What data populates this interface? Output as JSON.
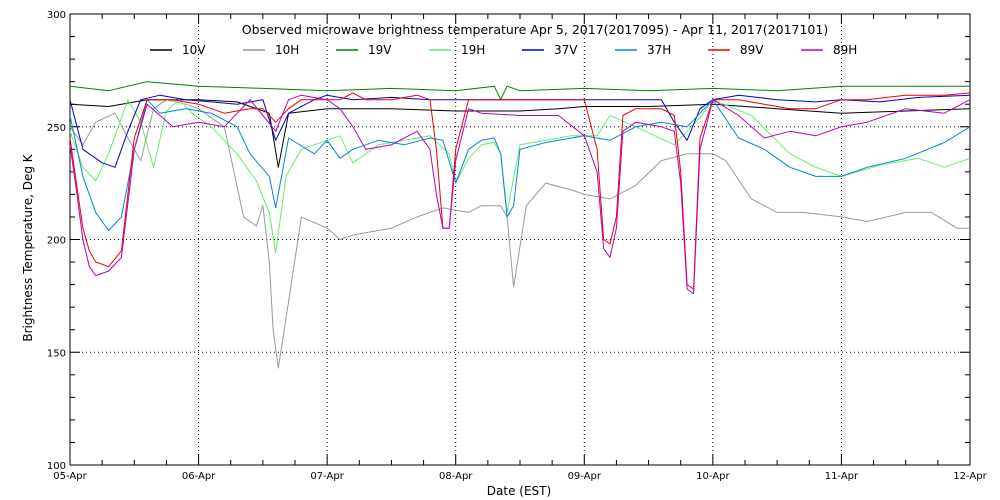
{
  "chart_data": {
    "type": "line",
    "title": "Observed microwave brightness temperature Apr  5, 2017(2017095) - Apr 11, 2017(2017101)",
    "xlabel": "Date (EST)",
    "ylabel": "Brightness Temperature, Deg K",
    "x_ticks": [
      "05-Apr",
      "06-Apr",
      "07-Apr",
      "08-Apr",
      "09-Apr",
      "10-Apr",
      "11-Apr",
      "12-Apr"
    ],
    "y_ticks": [
      "100",
      "150",
      "200",
      "250",
      "300"
    ],
    "xlim_days": [
      0,
      7
    ],
    "ylim": [
      100,
      300
    ],
    "grid": "dotted",
    "legend_position": "top",
    "series": [
      {
        "name": "10V",
        "color": "#000000",
        "x": [
          0,
          0.3,
          0.6,
          1.0,
          1.3,
          1.55,
          1.62,
          1.7,
          2.0,
          2.5,
          3.0,
          3.5,
          3.8,
          4.0,
          4.5,
          5.0,
          5.5,
          6.0,
          6.5,
          7.0
        ],
        "values": [
          260,
          259,
          262,
          262,
          261,
          256,
          232,
          256,
          258,
          258,
          257,
          257,
          258,
          259,
          259,
          260,
          258,
          256,
          257,
          258
        ]
      },
      {
        "name": "10H",
        "color": "#999999",
        "x": [
          0,
          0.1,
          0.2,
          0.35,
          0.45,
          0.55,
          0.65,
          0.75,
          0.9,
          1.0,
          1.2,
          1.35,
          1.45,
          1.5,
          1.55,
          1.58,
          1.62,
          1.68,
          1.8,
          2.0,
          2.1,
          2.2,
          2.5,
          2.7,
          2.9,
          3.1,
          3.2,
          3.35,
          3.4,
          3.45,
          3.55,
          3.7,
          3.9,
          4.0,
          4.2,
          4.4,
          4.6,
          4.8,
          5.0,
          5.1,
          5.3,
          5.5,
          5.7,
          6.0,
          6.2,
          6.5,
          6.7,
          6.9,
          7.0
        ],
        "values": [
          250,
          242,
          252,
          256,
          245,
          235,
          258,
          262,
          260,
          258,
          250,
          210,
          206,
          215,
          190,
          160,
          143,
          165,
          210,
          205,
          200,
          202,
          205,
          210,
          214,
          212,
          215,
          215,
          210,
          179,
          215,
          225,
          222,
          220,
          218,
          224,
          235,
          238,
          238,
          235,
          218,
          212,
          212,
          210,
          208,
          212,
          212,
          205,
          205
        ]
      },
      {
        "name": "19V",
        "color": "#008000",
        "x": [
          0,
          0.3,
          0.6,
          1.0,
          1.5,
          2.0,
          2.5,
          3.0,
          3.3,
          3.35,
          3.4,
          3.5,
          4.0,
          4.5,
          5.0,
          5.5,
          6.0,
          6.5,
          7.0
        ],
        "values": [
          268,
          266,
          270,
          268,
          267,
          266,
          267,
          266,
          268,
          262,
          268,
          266,
          267,
          266,
          267,
          266,
          268,
          268,
          268
        ]
      },
      {
        "name": "19H",
        "color": "#66ee66",
        "x": [
          0,
          0.1,
          0.2,
          0.3,
          0.45,
          0.55,
          0.65,
          0.75,
          0.85,
          0.95,
          1.1,
          1.3,
          1.45,
          1.55,
          1.6,
          1.68,
          1.8,
          2.0,
          2.1,
          2.2,
          2.4,
          2.6,
          2.8,
          2.95,
          3.0,
          3.1,
          3.2,
          3.3,
          3.35,
          3.4,
          3.5,
          3.7,
          3.9,
          4.1,
          4.2,
          4.4,
          4.7,
          4.9,
          5.0,
          5.3,
          5.6,
          5.8,
          6.0,
          6.3,
          6.6,
          6.8,
          7.0
        ],
        "values": [
          248,
          232,
          226,
          238,
          262,
          252,
          232,
          257,
          262,
          256,
          250,
          238,
          226,
          212,
          194,
          228,
          240,
          244,
          246,
          234,
          242,
          244,
          246,
          238,
          225,
          236,
          242,
          243,
          238,
          212,
          242,
          244,
          246,
          246,
          255,
          250,
          242,
          254,
          262,
          255,
          238,
          232,
          228,
          233,
          236,
          232,
          236
        ]
      },
      {
        "name": "37V",
        "color": "#0000cc",
        "x": [
          0,
          0.1,
          0.25,
          0.35,
          0.45,
          0.55,
          0.7,
          0.9,
          1.1,
          1.3,
          1.5,
          1.6,
          1.7,
          1.9,
          2.0,
          2.2,
          2.5,
          2.8,
          3.0,
          3.2,
          3.5,
          3.8,
          4.0,
          4.2,
          4.4,
          4.6,
          4.7,
          4.8,
          4.9,
          5.0,
          5.2,
          5.5,
          5.8,
          6.0,
          6.3,
          6.6,
          7.0
        ],
        "values": [
          262,
          240,
          234,
          232,
          248,
          262,
          264,
          262,
          261,
          260,
          262,
          244,
          256,
          262,
          264,
          262,
          263,
          262,
          262,
          262,
          262,
          262,
          262,
          262,
          262,
          262,
          252,
          244,
          258,
          262,
          264,
          262,
          261,
          262,
          261,
          263,
          264
        ]
      },
      {
        "name": "37H",
        "color": "#0088dd",
        "x": [
          0,
          0.1,
          0.2,
          0.3,
          0.4,
          0.5,
          0.6,
          0.7,
          0.9,
          1.1,
          1.3,
          1.4,
          1.55,
          1.6,
          1.7,
          1.9,
          2.0,
          2.1,
          2.2,
          2.4,
          2.6,
          2.8,
          2.9,
          3.0,
          3.1,
          3.2,
          3.3,
          3.35,
          3.4,
          3.45,
          3.5,
          3.7,
          3.9,
          4.0,
          4.2,
          4.4,
          4.6,
          4.8,
          5.0,
          5.2,
          5.4,
          5.6,
          5.8,
          6.0,
          6.2,
          6.5,
          6.8,
          7.0
        ],
        "values": [
          255,
          228,
          212,
          204,
          210,
          240,
          262,
          256,
          258,
          256,
          250,
          238,
          228,
          214,
          245,
          238,
          244,
          236,
          240,
          244,
          242,
          245,
          244,
          225,
          240,
          244,
          245,
          238,
          210,
          215,
          240,
          243,
          245,
          246,
          244,
          250,
          252,
          250,
          262,
          245,
          240,
          232,
          228,
          228,
          232,
          236,
          243,
          250
        ]
      },
      {
        "name": "89V",
        "color": "#ee0000",
        "x": [
          0,
          0.05,
          0.1,
          0.15,
          0.2,
          0.3,
          0.4,
          0.5,
          0.6,
          0.8,
          1.0,
          1.2,
          1.4,
          1.5,
          1.6,
          1.7,
          1.8,
          2.0,
          2.1,
          2.2,
          2.3,
          2.5,
          2.7,
          2.8,
          2.85,
          2.9,
          2.95,
          3.0,
          3.1,
          3.2,
          3.5,
          3.8,
          4.0,
          4.1,
          4.15,
          4.2,
          4.25,
          4.3,
          4.4,
          4.6,
          4.7,
          4.75,
          4.8,
          4.85,
          4.9,
          5.0,
          5.2,
          5.4,
          5.6,
          5.8,
          6.0,
          6.2,
          6.5,
          6.8,
          7.0
        ],
        "values": [
          245,
          225,
          205,
          195,
          190,
          188,
          195,
          245,
          262,
          262,
          260,
          256,
          258,
          258,
          252,
          258,
          262,
          262,
          262,
          265,
          262,
          262,
          264,
          262,
          240,
          205,
          205,
          240,
          262,
          262,
          262,
          262,
          262,
          240,
          200,
          198,
          210,
          255,
          258,
          258,
          255,
          230,
          180,
          178,
          245,
          262,
          262,
          260,
          258,
          258,
          262,
          262,
          264,
          264,
          265
        ]
      },
      {
        "name": "89H",
        "color": "#bb00bb",
        "x": [
          0,
          0.05,
          0.1,
          0.15,
          0.2,
          0.3,
          0.4,
          0.5,
          0.6,
          0.8,
          1.0,
          1.2,
          1.4,
          1.5,
          1.6,
          1.7,
          1.8,
          2.0,
          2.1,
          2.2,
          2.3,
          2.5,
          2.7,
          2.8,
          2.85,
          2.9,
          2.95,
          3.0,
          3.1,
          3.2,
          3.5,
          3.8,
          4.0,
          4.1,
          4.15,
          4.2,
          4.25,
          4.3,
          4.4,
          4.6,
          4.7,
          4.75,
          4.8,
          4.85,
          4.9,
          5.0,
          5.2,
          5.4,
          5.6,
          5.8,
          6.0,
          6.2,
          6.5,
          6.8,
          7.0
        ],
        "values": [
          242,
          222,
          200,
          188,
          184,
          186,
          192,
          240,
          260,
          250,
          252,
          250,
          262,
          255,
          248,
          262,
          264,
          262,
          258,
          250,
          240,
          242,
          248,
          240,
          220,
          205,
          205,
          235,
          258,
          256,
          255,
          255,
          246,
          230,
          196,
          192,
          205,
          248,
          252,
          250,
          248,
          225,
          178,
          176,
          240,
          262,
          255,
          245,
          248,
          246,
          250,
          252,
          258,
          256,
          262
        ]
      }
    ]
  }
}
